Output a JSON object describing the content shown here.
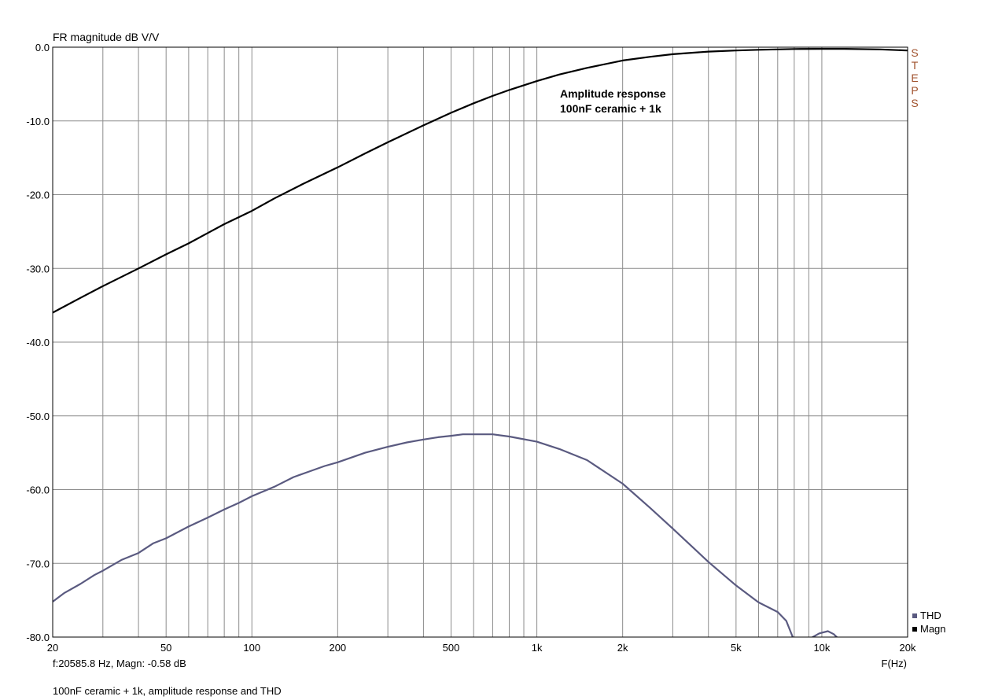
{
  "chart_data": {
    "type": "line",
    "title": "",
    "ylabel": "FR magnitude dB V/V",
    "xlabel": "F(Hz)",
    "x_scale": "log",
    "xlim": [
      20,
      20000
    ],
    "ylim": [
      -80,
      0
    ],
    "grid": true,
    "x_ticks": [
      20,
      50,
      100,
      200,
      500,
      1000,
      2000,
      5000,
      10000,
      20000
    ],
    "x_tick_labels": [
      "20",
      "50",
      "100",
      "200",
      "500",
      "1k",
      "2k",
      "5k",
      "10k",
      "20k"
    ],
    "x_minor_grid": [
      30,
      40,
      60,
      70,
      80,
      90,
      300,
      400,
      600,
      700,
      800,
      900,
      3000,
      4000,
      6000,
      7000,
      8000,
      9000
    ],
    "y_ticks": [
      0,
      -10,
      -20,
      -30,
      -40,
      -50,
      -60,
      -70,
      -80
    ],
    "y_tick_labels": [
      "0.0",
      "-10.0",
      "-20.0",
      "-30.0",
      "-40.0",
      "-50.0",
      "-60.0",
      "-70.0",
      "-80.0"
    ],
    "annotation": [
      "Amplitude response",
      "100nF ceramic + 1k"
    ],
    "side_label": "STEPS",
    "cursor_readout": "f:20585.8 Hz, Magn: -0.58 dB",
    "footer": "100nF ceramic + 1k, amplitude response and THD",
    "legend_position": "bottom-right",
    "series": [
      {
        "name": "THD",
        "color": "#5a5a80",
        "x": [
          20,
          22,
          25,
          28,
          30,
          35,
          40,
          45,
          50,
          60,
          70,
          80,
          90,
          100,
          120,
          140,
          160,
          180,
          200,
          250,
          300,
          350,
          400,
          450,
          500,
          550,
          600,
          700,
          800,
          1000,
          1200,
          1500,
          2000,
          2500,
          3000,
          4000,
          5000,
          6000,
          7000,
          7500,
          8000,
          8200,
          9000,
          9800,
          10500,
          11000,
          11500
        ],
        "y": [
          -75.2,
          -74,
          -72.8,
          -71.6,
          -71,
          -69.5,
          -68.6,
          -67.3,
          -66.6,
          -65,
          -63.8,
          -62.7,
          -61.8,
          -60.9,
          -59.6,
          -58.3,
          -57.5,
          -56.8,
          -56.3,
          -55,
          -54.2,
          -53.6,
          -53.2,
          -52.9,
          -52.7,
          -52.5,
          -52.5,
          -52.5,
          -52.8,
          -53.5,
          -54.5,
          -56,
          -59.2,
          -62.5,
          -65.3,
          -69.8,
          -73,
          -75.3,
          -76.6,
          -77.8,
          -80.5,
          -81.5,
          -80.3,
          -79.5,
          -79.2,
          -79.6,
          -80.3
        ]
      },
      {
        "name": "Magn",
        "color": "#000000",
        "x": [
          20,
          25,
          30,
          40,
          50,
          60,
          70,
          80,
          100,
          120,
          150,
          200,
          250,
          300,
          400,
          500,
          600,
          700,
          800,
          1000,
          1200,
          1500,
          2000,
          2500,
          3000,
          4000,
          5000,
          6000,
          8000,
          10000,
          12000,
          16000,
          20000
        ],
        "y": [
          -36,
          -34,
          -32.4,
          -30,
          -28.1,
          -26.6,
          -25.2,
          -24,
          -22.2,
          -20.5,
          -18.6,
          -16.3,
          -14.4,
          -12.9,
          -10.6,
          -8.9,
          -7.6,
          -6.6,
          -5.8,
          -4.6,
          -3.7,
          -2.8,
          -1.8,
          -1.3,
          -0.95,
          -0.6,
          -0.45,
          -0.35,
          -0.25,
          -0.22,
          -0.22,
          -0.3,
          -0.45
        ]
      }
    ]
  }
}
